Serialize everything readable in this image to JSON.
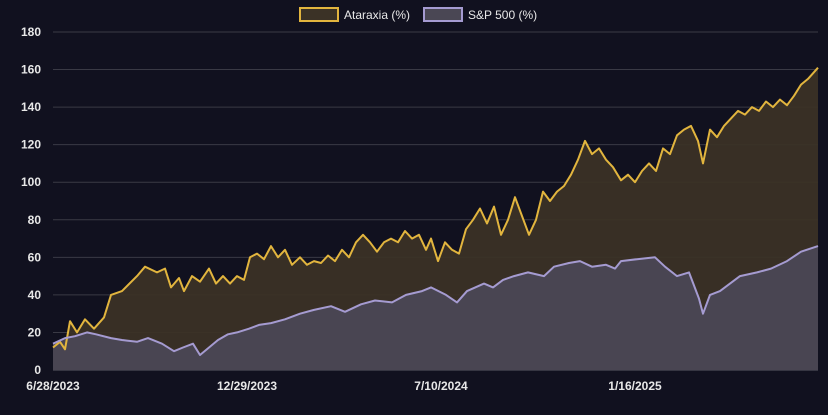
{
  "chart_data": {
    "type": "area",
    "legend_position": "top-center",
    "grid": true,
    "ylim": [
      0,
      180
    ],
    "y_ticks": [
      0,
      20,
      40,
      60,
      80,
      100,
      120,
      140,
      160,
      180
    ],
    "x_tick_labels": [
      "6/28/2023",
      "12/29/2023",
      "7/10/2024",
      "1/16/2025"
    ],
    "x_start": "2023-06-28",
    "x_end": "2025-08-01",
    "series": [
      {
        "name": "Ataraxia (%)",
        "color": "#e2b53e",
        "fill": "#3b3226",
        "points": [
          [
            "2023-06-28",
            12
          ],
          [
            "2023-07-05",
            15
          ],
          [
            "2023-07-10",
            11
          ],
          [
            "2023-07-15",
            26
          ],
          [
            "2023-07-22",
            20
          ],
          [
            "2023-07-30",
            27
          ],
          [
            "2023-08-08",
            22
          ],
          [
            "2023-08-18",
            28
          ],
          [
            "2023-08-25",
            40
          ],
          [
            "2023-09-05",
            42
          ],
          [
            "2023-09-20",
            50
          ],
          [
            "2023-09-28",
            55
          ],
          [
            "2023-10-10",
            52
          ],
          [
            "2023-10-18",
            54
          ],
          [
            "2023-10-24",
            44
          ],
          [
            "2023-11-01",
            49
          ],
          [
            "2023-11-06",
            42
          ],
          [
            "2023-11-14",
            50
          ],
          [
            "2023-11-22",
            47
          ],
          [
            "2023-12-01",
            54
          ],
          [
            "2023-12-08",
            46
          ],
          [
            "2023-12-15",
            50
          ],
          [
            "2023-12-22",
            46
          ],
          [
            "2023-12-29",
            50
          ],
          [
            "2024-01-05",
            48
          ],
          [
            "2024-01-11",
            60
          ],
          [
            "2024-01-18",
            62
          ],
          [
            "2024-01-25",
            59
          ],
          [
            "2024-02-01",
            66
          ],
          [
            "2024-02-08",
            60
          ],
          [
            "2024-02-15",
            64
          ],
          [
            "2024-02-22",
            56
          ],
          [
            "2024-03-01",
            60
          ],
          [
            "2024-03-08",
            56
          ],
          [
            "2024-03-15",
            58
          ],
          [
            "2024-03-22",
            57
          ],
          [
            "2024-03-29",
            61
          ],
          [
            "2024-04-05",
            58
          ],
          [
            "2024-04-12",
            64
          ],
          [
            "2024-04-19",
            60
          ],
          [
            "2024-04-26",
            68
          ],
          [
            "2024-05-03",
            72
          ],
          [
            "2024-05-10",
            68
          ],
          [
            "2024-05-17",
            63
          ],
          [
            "2024-05-24",
            68
          ],
          [
            "2024-05-31",
            70
          ],
          [
            "2024-06-07",
            68
          ],
          [
            "2024-06-14",
            74
          ],
          [
            "2024-06-21",
            70
          ],
          [
            "2024-06-28",
            72
          ],
          [
            "2024-07-05",
            64
          ],
          [
            "2024-07-10",
            70
          ],
          [
            "2024-07-17",
            58
          ],
          [
            "2024-07-24",
            68
          ],
          [
            "2024-07-31",
            64
          ],
          [
            "2024-08-07",
            62
          ],
          [
            "2024-08-14",
            75
          ],
          [
            "2024-08-21",
            80
          ],
          [
            "2024-08-28",
            86
          ],
          [
            "2024-09-04",
            78
          ],
          [
            "2024-09-11",
            87
          ],
          [
            "2024-09-18",
            72
          ],
          [
            "2024-09-25",
            80
          ],
          [
            "2024-10-02",
            92
          ],
          [
            "2024-10-09",
            82
          ],
          [
            "2024-10-16",
            72
          ],
          [
            "2024-10-23",
            80
          ],
          [
            "2024-10-30",
            95
          ],
          [
            "2024-11-06",
            90
          ],
          [
            "2024-11-13",
            95
          ],
          [
            "2024-11-20",
            98
          ],
          [
            "2024-11-27",
            104
          ],
          [
            "2024-12-04",
            112
          ],
          [
            "2024-12-11",
            122
          ],
          [
            "2024-12-18",
            115
          ],
          [
            "2024-12-25",
            118
          ],
          [
            "2025-01-01",
            112
          ],
          [
            "2025-01-08",
            108
          ],
          [
            "2025-01-16",
            101
          ],
          [
            "2025-01-23",
            104
          ],
          [
            "2025-01-30",
            100
          ],
          [
            "2025-02-06",
            106
          ],
          [
            "2025-02-13",
            110
          ],
          [
            "2025-02-20",
            106
          ],
          [
            "2025-02-27",
            118
          ],
          [
            "2025-03-06",
            115
          ],
          [
            "2025-03-13",
            125
          ],
          [
            "2025-03-20",
            128
          ],
          [
            "2025-03-27",
            130
          ],
          [
            "2025-04-03",
            122
          ],
          [
            "2025-04-08",
            110
          ],
          [
            "2025-04-15",
            128
          ],
          [
            "2025-04-22",
            124
          ],
          [
            "2025-04-29",
            130
          ],
          [
            "2025-05-06",
            134
          ],
          [
            "2025-05-13",
            138
          ],
          [
            "2025-05-20",
            136
          ],
          [
            "2025-05-27",
            140
          ],
          [
            "2025-06-03",
            138
          ],
          [
            "2025-06-10",
            143
          ],
          [
            "2025-06-17",
            140
          ],
          [
            "2025-06-24",
            144
          ],
          [
            "2025-07-01",
            141
          ],
          [
            "2025-07-08",
            146
          ],
          [
            "2025-07-15",
            152
          ],
          [
            "2025-07-22",
            155
          ],
          [
            "2025-08-01",
            161
          ]
        ]
      },
      {
        "name": "S&P 500 (%)",
        "color": "#a59bd1",
        "fill": "#4a4754",
        "points": [
          [
            "2023-06-28",
            14
          ],
          [
            "2023-07-10",
            17
          ],
          [
            "2023-07-20",
            18
          ],
          [
            "2023-08-01",
            20
          ],
          [
            "2023-08-10",
            19
          ],
          [
            "2023-08-25",
            17
          ],
          [
            "2023-09-05",
            16
          ],
          [
            "2023-09-20",
            15
          ],
          [
            "2023-10-01",
            17
          ],
          [
            "2023-10-15",
            14
          ],
          [
            "2023-10-27",
            10
          ],
          [
            "2023-11-05",
            12
          ],
          [
            "2023-11-15",
            14
          ],
          [
            "2023-11-22",
            8
          ],
          [
            "2023-12-01",
            12
          ],
          [
            "2023-12-10",
            16
          ],
          [
            "2023-12-20",
            19
          ],
          [
            "2023-12-29",
            20
          ],
          [
            "2024-01-10",
            22
          ],
          [
            "2024-01-20",
            24
          ],
          [
            "2024-02-01",
            25
          ],
          [
            "2024-02-15",
            27
          ],
          [
            "2024-03-01",
            30
          ],
          [
            "2024-03-15",
            32
          ],
          [
            "2024-04-01",
            34
          ],
          [
            "2024-04-15",
            31
          ],
          [
            "2024-05-01",
            35
          ],
          [
            "2024-05-15",
            37
          ],
          [
            "2024-06-01",
            36
          ],
          [
            "2024-06-15",
            40
          ],
          [
            "2024-07-01",
            42
          ],
          [
            "2024-07-10",
            44
          ],
          [
            "2024-07-25",
            40
          ],
          [
            "2024-08-05",
            36
          ],
          [
            "2024-08-15",
            42
          ],
          [
            "2024-09-01",
            46
          ],
          [
            "2024-09-10",
            44
          ],
          [
            "2024-09-20",
            48
          ],
          [
            "2024-10-01",
            50
          ],
          [
            "2024-10-15",
            52
          ],
          [
            "2024-10-31",
            50
          ],
          [
            "2024-11-10",
            55
          ],
          [
            "2024-11-25",
            57
          ],
          [
            "2024-12-06",
            58
          ],
          [
            "2024-12-18",
            55
          ],
          [
            "2025-01-01",
            56
          ],
          [
            "2025-01-10",
            54
          ],
          [
            "2025-01-16",
            58
          ],
          [
            "2025-02-01",
            59
          ],
          [
            "2025-02-19",
            60
          ],
          [
            "2025-03-01",
            55
          ],
          [
            "2025-03-13",
            50
          ],
          [
            "2025-03-25",
            52
          ],
          [
            "2025-04-04",
            38
          ],
          [
            "2025-04-08",
            30
          ],
          [
            "2025-04-15",
            40
          ],
          [
            "2025-04-25",
            42
          ],
          [
            "2025-05-05",
            46
          ],
          [
            "2025-05-15",
            50
          ],
          [
            "2025-06-01",
            52
          ],
          [
            "2025-06-15",
            54
          ],
          [
            "2025-07-01",
            58
          ],
          [
            "2025-07-15",
            63
          ],
          [
            "2025-08-01",
            66
          ]
        ]
      }
    ]
  }
}
